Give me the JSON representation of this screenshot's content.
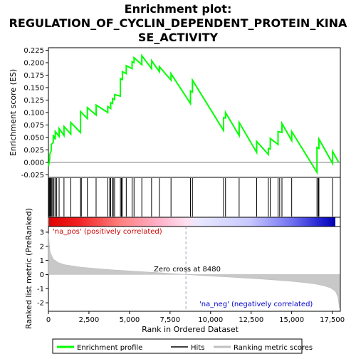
{
  "chart_data": {
    "type": "line",
    "title_lines": [
      "Enrichment plot:",
      "REGULATION_OF_CYCLIN_DEPENDENT_PROTEIN_KINA",
      "SE_ACTIVITY"
    ],
    "es_panel": {
      "ylabel": "Enrichment score (ES)",
      "ylim": [
        -0.03,
        0.23
      ],
      "yticks": [
        "-0.025",
        "0.000",
        "0.025",
        "0.050",
        "0.075",
        "0.100",
        "0.125",
        "0.150",
        "0.175",
        "0.200",
        "0.225"
      ],
      "xlim": [
        0,
        18000
      ],
      "series": [
        {
          "name": "Enrichment profile",
          "color": "#00ff00",
          "x": [
            0,
            80,
            80,
            180,
            180,
            300,
            300,
            420,
            420,
            660,
            660,
            960,
            960,
            1380,
            1380,
            1980,
            1980,
            2400,
            2400,
            2940,
            2940,
            3660,
            3660,
            3840,
            3840,
            3960,
            3960,
            4080,
            4080,
            4440,
            4440,
            4560,
            4560,
            4800,
            4800,
            5160,
            5160,
            5280,
            5280,
            5760,
            5760,
            6360,
            6360,
            6840,
            6840,
            7560,
            7560,
            8760,
            8760,
            8880,
            8880,
            10800,
            10800,
            10920,
            10920,
            11760,
            11760,
            12840,
            12840,
            13560,
            13560,
            13680,
            13680,
            14160,
            14160,
            14400,
            14400,
            15000,
            15000,
            16560,
            16560,
            16680,
            16680,
            17520,
            17520,
            17900
          ],
          "y": [
            -0.008,
            0.006,
            0.016,
            0.024,
            0.036,
            0.04,
            0.055,
            0.046,
            0.062,
            0.052,
            0.068,
            0.054,
            0.072,
            0.057,
            0.08,
            0.06,
            0.102,
            0.088,
            0.11,
            0.095,
            0.115,
            0.1,
            0.112,
            0.108,
            0.12,
            0.118,
            0.128,
            0.126,
            0.136,
            0.133,
            0.168,
            0.166,
            0.182,
            0.178,
            0.194,
            0.188,
            0.202,
            0.2,
            0.21,
            0.196,
            0.214,
            0.188,
            0.204,
            0.182,
            0.192,
            0.165,
            0.178,
            0.118,
            0.143,
            0.141,
            0.165,
            0.064,
            0.09,
            0.089,
            0.1,
            0.054,
            0.08,
            0.02,
            0.042,
            0.016,
            0.028,
            0.027,
            0.048,
            0.036,
            0.062,
            0.06,
            0.078,
            0.044,
            0.062,
            -0.02,
            0.03,
            0.028,
            0.047,
            -0.002,
            0.022,
            0.0
          ]
        }
      ]
    },
    "hits_x": [
      30,
      70,
      110,
      160,
      210,
      270,
      340,
      420,
      510,
      660,
      960,
      1380,
      1980,
      2030,
      2400,
      2940,
      3660,
      3780,
      3840,
      3960,
      4000,
      4080,
      4440,
      4500,
      4560,
      4800,
      5160,
      5280,
      5760,
      6360,
      6840,
      7560,
      8760,
      8880,
      10800,
      10920,
      11760,
      12840,
      13560,
      13680,
      14160,
      14260,
      14400,
      15000,
      16560,
      16640,
      16680,
      17520
    ],
    "rank_panel": {
      "ylabel": "Ranked list metric (PreRanked)",
      "xlabel": "Rank in Ordered Dataset",
      "ylim": [
        -2.6,
        3.4
      ],
      "yticks": [
        "-2",
        "-1",
        "0",
        "1",
        "2",
        "3"
      ],
      "xticks": [
        "0",
        "2,500",
        "5,000",
        "7,500",
        "10,000",
        "12,500",
        "15,000",
        "17,500"
      ],
      "zero_cross_text": "Zero cross at 8480",
      "zero_cross": 8480,
      "pos_label": "'na_pos' (positively correlated)",
      "neg_label": "'na_neg' (negatively correlated)",
      "metric_curve": {
        "x": [
          0,
          100,
          300,
          600,
          1000,
          2000,
          3000,
          4000,
          5000,
          6000,
          7000,
          8000,
          8480,
          9000,
          10000,
          11000,
          12000,
          13000,
          14000,
          15000,
          16000,
          16500,
          17000,
          17400,
          17700,
          17850,
          17950
        ],
        "y": [
          2.9,
          1.6,
          1.1,
          0.85,
          0.7,
          0.52,
          0.42,
          0.33,
          0.26,
          0.19,
          0.12,
          0.04,
          0.0,
          -0.04,
          -0.11,
          -0.17,
          -0.24,
          -0.31,
          -0.39,
          -0.48,
          -0.6,
          -0.68,
          -0.8,
          -0.95,
          -1.2,
          -1.6,
          -2.4
        ]
      }
    },
    "legend": [
      {
        "label": "Enrichment profile",
        "color": "#00ff00"
      },
      {
        "label": "Hits",
        "color": "#000000"
      },
      {
        "label": "Ranking metric scores",
        "color": "#c0c0c0"
      }
    ]
  }
}
